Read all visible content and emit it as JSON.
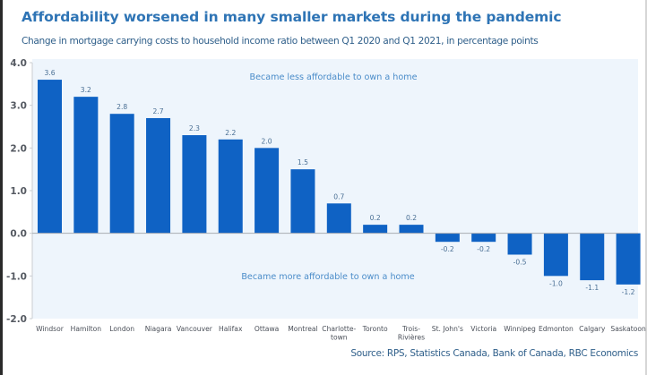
{
  "chart_data": {
    "type": "bar",
    "title": "Affordability worsened in many smaller markets during the pandemic",
    "subtitle": "Change in mortgage carrying costs to household income ratio between Q1 2020 and Q1 2021, in percentage points",
    "categories": [
      [
        "Windsor"
      ],
      [
        "Hamilton"
      ],
      [
        "London"
      ],
      [
        "Niagara"
      ],
      [
        "Vancouver"
      ],
      [
        "Halifax"
      ],
      [
        "Ottawa"
      ],
      [
        "Montreal"
      ],
      [
        "Charlotte-",
        "town"
      ],
      [
        "Toronto"
      ],
      [
        "Trois-",
        "Rivières"
      ],
      [
        "St. John's"
      ],
      [
        "Victoria"
      ],
      [
        "Winnipeg"
      ],
      [
        "Edmonton"
      ],
      [
        "Calgary"
      ],
      [
        "Saskatoon"
      ]
    ],
    "values": [
      3.6,
      3.2,
      2.8,
      2.7,
      2.3,
      2.2,
      2.0,
      1.5,
      0.7,
      0.2,
      0.2,
      -0.2,
      -0.2,
      -0.5,
      -1.0,
      -1.1,
      -1.2
    ],
    "value_labels": [
      "3.6",
      "3.2",
      "2.8",
      "2.7",
      "2.3",
      "2.2",
      "2.0",
      "1.5",
      "0.7",
      "0.2",
      "0.2",
      "-0.2",
      "-0.2",
      "-0.5",
      "-1.0",
      "-1.1",
      "-1.2"
    ],
    "xlabel": "",
    "ylabel": "",
    "ylim": [
      -2.0,
      4.0
    ],
    "yticks": [
      4.0,
      3.0,
      2.0,
      1.0,
      0.0,
      -1.0,
      -2.0
    ],
    "ytick_labels": [
      "4.0",
      "3.0",
      "2.0",
      "1.0",
      "0.0",
      "-1.0",
      "-2.0"
    ],
    "grid": false,
    "legend": "none",
    "annotations": {
      "upper": "Became less affordable to own a home",
      "lower": "Became more affordable to own a home"
    },
    "source": "Source: RPS, Statistics Canada, Bank of Canada, RBC Economics",
    "colors": {
      "bar": "#0f62c4",
      "plot_background": "#eef5fc",
      "title": "#2e74b5",
      "annotation": "#4a8cc9"
    }
  }
}
